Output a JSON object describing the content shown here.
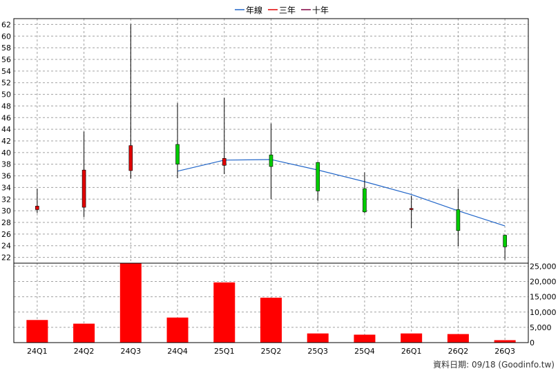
{
  "chart_data": {
    "type": "candlestick+bar",
    "legend": {
      "placement": "top-center",
      "items": [
        {
          "label": "年線",
          "color": "#1f64c8"
        },
        {
          "label": "三年",
          "color": "#e00000"
        },
        {
          "label": "十年",
          "color": "#800040"
        }
      ]
    },
    "categories": [
      "24Q1",
      "24Q2",
      "24Q3",
      "24Q4",
      "25Q1",
      "25Q2",
      "25Q3",
      "25Q4",
      "26Q1",
      "26Q2",
      "26Q3"
    ],
    "price_axis": {
      "ylim": [
        21,
        63
      ],
      "ticks": [
        22,
        24,
        26,
        28,
        30,
        32,
        34,
        36,
        38,
        40,
        42,
        44,
        46,
        48,
        50,
        52,
        54,
        56,
        58,
        60,
        62
      ]
    },
    "candles": [
      {
        "open": 30.8,
        "close": 30.2,
        "high": 33.8,
        "low": 29.6
      },
      {
        "open": 37.0,
        "close": 30.6,
        "high": 43.6,
        "low": 28.9
      },
      {
        "open": 41.2,
        "close": 36.9,
        "high": 62.0,
        "low": 35.5
      },
      {
        "open": 38.0,
        "close": 41.4,
        "high": 48.5,
        "low": 35.6
      },
      {
        "open": 39.0,
        "close": 37.8,
        "high": 49.4,
        "low": 36.3
      },
      {
        "open": 37.6,
        "close": 39.6,
        "high": 45.0,
        "low": 32.0
      },
      {
        "open": 33.4,
        "close": 38.3,
        "high": 38.4,
        "low": 31.7
      },
      {
        "open": 29.8,
        "close": 33.8,
        "high": 36.6,
        "low": 29.6
      },
      {
        "open": 30.4,
        "close": 30.2,
        "high": 32.6,
        "low": 27.0
      },
      {
        "open": 26.6,
        "close": 30.2,
        "high": 33.8,
        "low": 23.9
      },
      {
        "open": 23.8,
        "close": 25.8,
        "high": 25.9,
        "low": 21.6
      }
    ],
    "year_line": {
      "name": "年線",
      "start_index": 3,
      "values": [
        36.8,
        38.7,
        38.8,
        37.0,
        35.0,
        32.8,
        30.0,
        27.4
      ]
    },
    "volume_axis": {
      "ylim": [
        0,
        26000
      ],
      "ticks": [
        "0",
        "5,000",
        "10,000",
        "15,000",
        "20,000",
        "25,000"
      ],
      "tick_values": [
        0,
        5000,
        10000,
        15000,
        20000,
        25000
      ]
    },
    "volumes": [
      7400,
      6200,
      25900,
      8200,
      19700,
      14700,
      3000,
      2600,
      3000,
      2800,
      800
    ],
    "up_color": "#00cc00",
    "down_color": "#e00000",
    "volume_color": "#ff0000"
  },
  "footer": {
    "source_text": "資料日期: 09/18  (Goodinfo.tw)"
  }
}
